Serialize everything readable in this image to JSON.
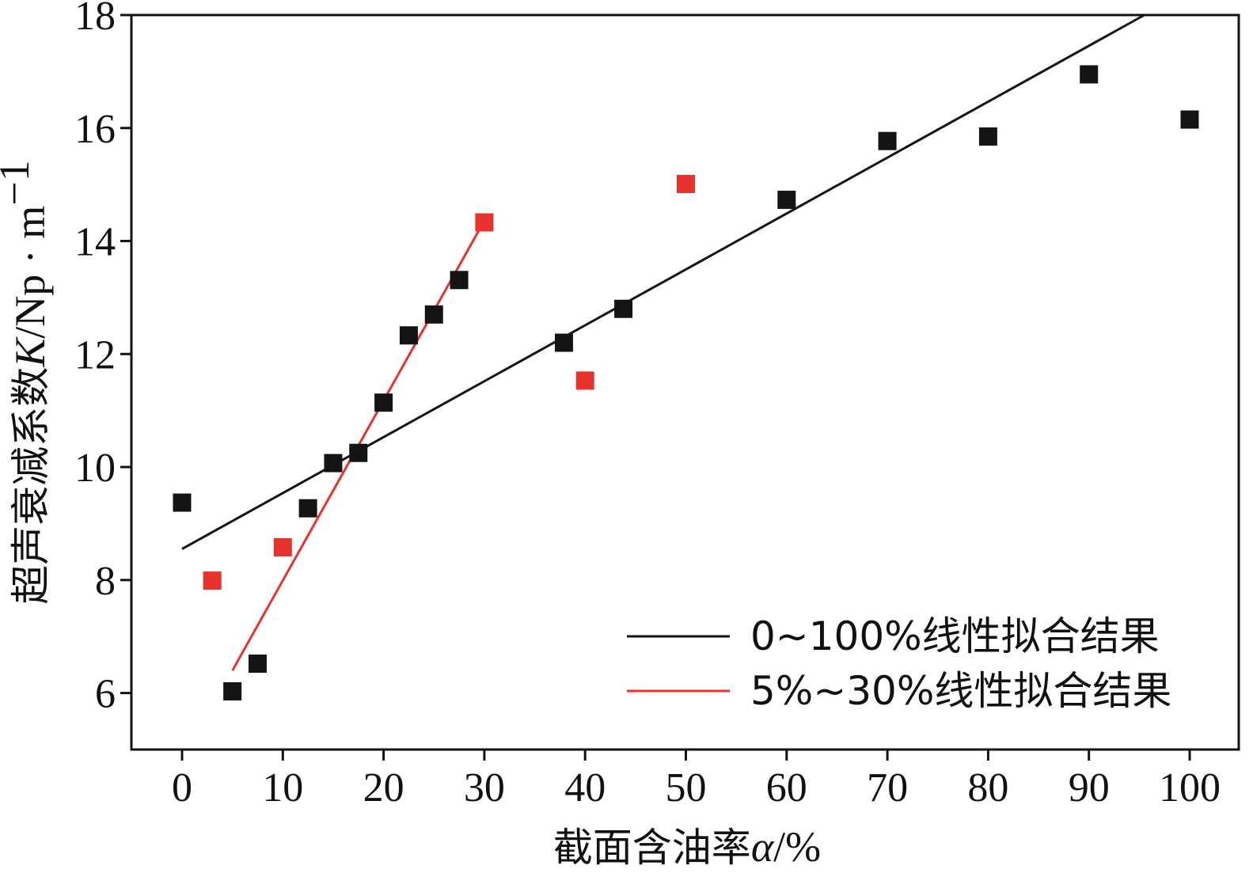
{
  "chart_data": {
    "type": "scatter",
    "xlabel": {
      "text": "截面含油率",
      "symbol": "α",
      "unit": "/%"
    },
    "ylabel": {
      "text": "超声衰减系数",
      "symbol": "K",
      "unit": "/Np · m",
      "exponent": "−1"
    },
    "xlim": [
      -5,
      105
    ],
    "ylim": [
      5,
      18
    ],
    "xticks": [
      0,
      10,
      20,
      30,
      40,
      50,
      60,
      70,
      80,
      90,
      100
    ],
    "yticks": [
      6,
      8,
      10,
      12,
      14,
      16,
      18
    ],
    "grid": false,
    "colors": {
      "black": "#141414",
      "red": "#e8322e"
    },
    "series": [
      {
        "name": "black-points",
        "color": "#141414",
        "points": [
          [
            0,
            9.37
          ],
          [
            5,
            6.03
          ],
          [
            7.5,
            6.52
          ],
          [
            12.5,
            9.27
          ],
          [
            15,
            10.07
          ],
          [
            17.5,
            10.25
          ],
          [
            20,
            11.14
          ],
          [
            22.5,
            12.33
          ],
          [
            25,
            12.7
          ],
          [
            27.5,
            13.31
          ],
          [
            37.9,
            12.2
          ],
          [
            43.8,
            12.8
          ],
          [
            60,
            14.73
          ],
          [
            70,
            15.77
          ],
          [
            80,
            15.85
          ],
          [
            90,
            16.95
          ],
          [
            100,
            16.15
          ]
        ]
      },
      {
        "name": "red-points",
        "color": "#e8322e",
        "points": [
          [
            3,
            7.99
          ],
          [
            10,
            8.58
          ],
          [
            30,
            14.33
          ],
          [
            40,
            11.53
          ],
          [
            50,
            15.01
          ]
        ]
      }
    ],
    "fits": [
      {
        "name": "0~100%线性拟合结果",
        "color": "#141414",
        "x": [
          0,
          95.5
        ],
        "y": [
          8.55,
          18
        ]
      },
      {
        "name": "5%~30%线性拟合结果",
        "color": "#e8322e",
        "x": [
          5,
          29.5
        ],
        "y": [
          6.4,
          14.2
        ]
      }
    ],
    "legend": {
      "position": "bottom-right",
      "entries": [
        "0~100%线性拟合结果",
        "5%~30%线性拟合结果"
      ]
    }
  }
}
